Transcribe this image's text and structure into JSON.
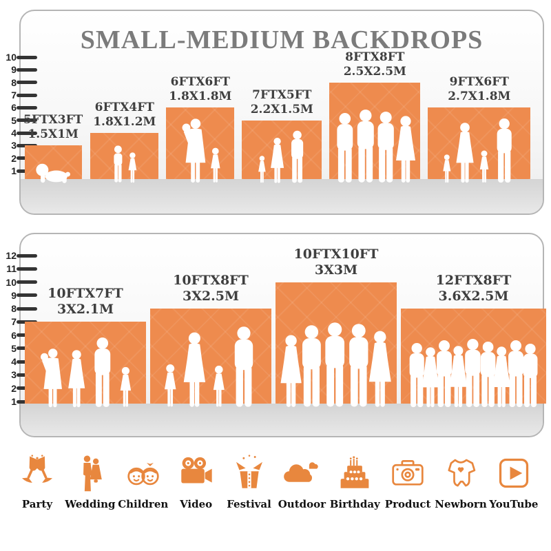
{
  "title": "SMALL-MEDIUM BACKDROPS",
  "colors": {
    "bar_orange": "#ee8b4e",
    "icon_orange": "#e8873e",
    "title_gray": "#7b7b7b",
    "label_dark": "#3f3f3f",
    "tick_dark": "#343434",
    "panel_border": "#b5b5b5"
  },
  "panels": [
    {
      "name": "small-backdrops",
      "ruler_numbers": [
        "1",
        "2",
        "3",
        "4",
        "5",
        "6",
        "7",
        "8",
        "9",
        "10"
      ],
      "bars": [
        {
          "label_ft": "5FTX3FT",
          "label_m": "1.5X1M",
          "width_ft": 5,
          "height_ft": 3,
          "width_m": 1.5,
          "height_m": 1,
          "figures": [
            [
              "baby",
              36
            ]
          ]
        },
        {
          "label_ft": "6FTX4FT",
          "label_m": "1.8X1.2M",
          "width_ft": 6,
          "height_ft": 4,
          "width_m": 1.8,
          "height_m": 1.2,
          "figures": [
            [
              "boy",
              57
            ],
            [
              "girl",
              47
            ]
          ]
        },
        {
          "label_ft": "6FTX6FT",
          "label_m": "1.8X1.8M",
          "width_ft": 6,
          "height_ft": 6,
          "width_m": 1.8,
          "height_m": 1.8,
          "figures": [
            [
              "womanbaby",
              96
            ],
            [
              "girl",
              54
            ]
          ]
        },
        {
          "label_ft": "7FTX5FT",
          "label_m": "2.2X1.5M",
          "width_ft": 7,
          "height_ft": 5,
          "width_m": 2.2,
          "height_m": 1.5,
          "figures": [
            [
              "girl",
              42
            ],
            [
              "woman",
              68
            ],
            [
              "man",
              78
            ]
          ]
        },
        {
          "label_ft": "8FTX8FT",
          "label_m": "2.5X2.5M",
          "width_ft": 8,
          "height_ft": 8,
          "width_m": 2.5,
          "height_m": 2.5,
          "figures": [
            [
              "man",
              104
            ],
            [
              "man",
              109
            ],
            [
              "man",
              106
            ],
            [
              "woman",
              100
            ]
          ]
        },
        {
          "label_ft": "9FTX6FT",
          "label_m": "2.7X1.8M",
          "width_ft": 9,
          "height_ft": 6,
          "width_m": 2.7,
          "height_m": 1.8,
          "figures": [
            [
              "girl",
              44
            ],
            [
              "woman",
              90
            ],
            [
              "girl",
              50
            ],
            [
              "man",
              96
            ]
          ]
        }
      ]
    },
    {
      "name": "medium-backdrops",
      "ruler_numbers": [
        "1",
        "2",
        "3",
        "4",
        "5",
        "6",
        "7",
        "8",
        "9",
        "10",
        "11",
        "12"
      ],
      "bars": [
        {
          "label_ft": "10FTX7FT",
          "label_m": "3X2.1M",
          "width_ft": 10,
          "height_ft": 7,
          "width_m": 3,
          "height_m": 2.1,
          "figures": [
            [
              "womanbaby",
              88
            ],
            [
              "woman",
              86
            ],
            [
              "man",
              104
            ],
            [
              "girl",
              62
            ]
          ]
        },
        {
          "label_ft": "10FTX8FT",
          "label_m": "3X2.5M",
          "width_ft": 10,
          "height_ft": 8,
          "width_m": 3,
          "height_m": 2.5,
          "figures": [
            [
              "girl",
              66
            ],
            [
              "woman",
              112
            ],
            [
              "girl",
              64
            ],
            [
              "man",
              120
            ]
          ]
        },
        {
          "label_ft": "10FTX10FT",
          "label_m": "3X3M",
          "width_ft": 10,
          "height_ft": 10,
          "width_m": 3,
          "height_m": 3,
          "figures": [
            [
              "woman",
              108
            ],
            [
              "man",
              122
            ],
            [
              "man",
              126
            ],
            [
              "man",
              124
            ],
            [
              "woman",
              114
            ]
          ]
        },
        {
          "label_ft": "12FTX8FT",
          "label_m": "3.6X2.5M",
          "width_ft": 12,
          "height_ft": 8,
          "width_m": 3.6,
          "height_m": 2.5,
          "figures": [
            [
              "man",
              96
            ],
            [
              "woman",
              90
            ],
            [
              "man",
              100
            ],
            [
              "woman",
              92
            ],
            [
              "man",
              102
            ],
            [
              "man",
              98
            ],
            [
              "woman",
              91
            ],
            [
              "man",
              100
            ],
            [
              "man",
              95
            ]
          ]
        }
      ]
    }
  ],
  "categories": [
    {
      "label": "Party",
      "icon": "party-icon"
    },
    {
      "label": "Wedding",
      "icon": "wedding-icon"
    },
    {
      "label": "Children",
      "icon": "children-icon"
    },
    {
      "label": "Video",
      "icon": "video-icon"
    },
    {
      "label": "Festival",
      "icon": "festival-icon"
    },
    {
      "label": "Outdoor",
      "icon": "outdoor-icon"
    },
    {
      "label": "Birthday",
      "icon": "birthday-icon"
    },
    {
      "label": "Product",
      "icon": "product-icon"
    },
    {
      "label": "Newborn",
      "icon": "newborn-icon"
    },
    {
      "label": "YouTube",
      "icon": "youtube-icon"
    }
  ]
}
